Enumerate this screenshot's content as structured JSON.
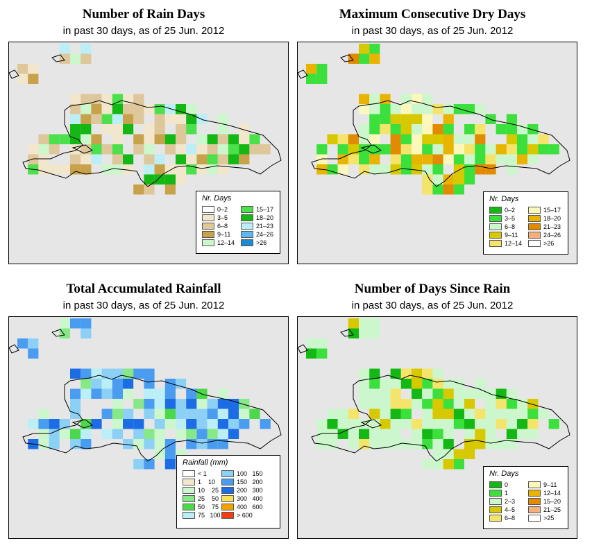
{
  "panels": [
    {
      "id": "rain-days",
      "title": "Number of Rain Days",
      "subtitle": "in past 30 days, as of  25 Jun. 2012",
      "legend": {
        "title": "Nr. Days",
        "columns": [
          [
            {
              "label": "0–2",
              "color": "#ffffff"
            },
            {
              "label": "3–5",
              "color": "#f2e6cd"
            },
            {
              "label": "6–8",
              "color": "#dec79b"
            },
            {
              "label": "9–11",
              "color": "#c8a24a"
            },
            {
              "label": "12–14",
              "color": "#ccf7cc"
            }
          ],
          [
            {
              "label": "15–17",
              "color": "#4ce04c"
            },
            {
              "label": "18–20",
              "color": "#14b814"
            },
            {
              "label": "21–23",
              "color": "#bceef8"
            },
            {
              "label": "24–26",
              "color": "#5cb8f2"
            },
            {
              "label": ">26",
              "color": "#1e8ad0"
            }
          ]
        ]
      }
    },
    {
      "id": "dry-days",
      "title": "Maximum Consecutive Dry Days",
      "subtitle": "in past 30 days, as of  25 Jun. 2012",
      "legend": {
        "title": "Nr. Days",
        "columns": [
          [
            {
              "label": "0–2",
              "color": "#14b814"
            },
            {
              "label": "3–5",
              "color": "#3ce03c"
            },
            {
              "label": "6–8",
              "color": "#ccf7cc"
            },
            {
              "label": "9–11",
              "color": "#d8c800"
            },
            {
              "label": "12–14",
              "color": "#f4e46a"
            }
          ],
          [
            {
              "label": "15–17",
              "color": "#fcf8bc"
            },
            {
              "label": "18–20",
              "color": "#e8b400"
            },
            {
              "label": "21–23",
              "color": "#e28a00"
            },
            {
              "label": "24–26",
              "color": "#f4b07c"
            },
            {
              "label": ">26",
              "color": "#ffffff"
            }
          ]
        ]
      }
    },
    {
      "id": "rainfall",
      "title": "Total Accumulated Rainfall",
      "subtitle": "in past 30 days, as of  25 Jun. 2012",
      "legend": {
        "title": "Rainfall (mm)",
        "columns": [
          [
            {
              "label": "< 1",
              "color": "#ffffff"
            },
            {
              "label": "1    10",
              "color": "#f2e6cd"
            },
            {
              "label": "10    25",
              "color": "#ccf7cc"
            },
            {
              "label": "25    50",
              "color": "#86e886"
            },
            {
              "label": "50    75",
              "color": "#4cd84c"
            },
            {
              "label": "75   100",
              "color": "#bceef8"
            }
          ],
          [
            {
              "label": "100   150",
              "color": "#8cd0f6"
            },
            {
              "label": "150   200",
              "color": "#4a9cf0"
            },
            {
              "label": "200   300",
              "color": "#1c6ce6"
            },
            {
              "label": "300   400",
              "color": "#f6e060"
            },
            {
              "label": "400   600",
              "color": "#f4a000"
            },
            {
              "label": "> 600",
              "color": "#f43c0c"
            }
          ]
        ]
      }
    },
    {
      "id": "days-since-rain",
      "title": "Number of Days Since Rain",
      "subtitle": "in past 30 days, as of  25 Jun. 2012",
      "legend": {
        "title": "Nr. Days",
        "columns": [
          [
            {
              "label": "0",
              "color": "#14b814"
            },
            {
              "label": "1",
              "color": "#3ce03c"
            },
            {
              "label": "2–3",
              "color": "#ccf7cc"
            },
            {
              "label": "4–5",
              "color": "#d8c800"
            },
            {
              "label": "6–8",
              "color": "#f4e46a"
            }
          ],
          [
            {
              "label": "9–11",
              "color": "#fcf8bc"
            },
            {
              "label": "12–14",
              "color": "#e8b400"
            },
            {
              "label": "15–20",
              "color": "#e28a00"
            },
            {
              "label": "21–25",
              "color": "#f4b07c"
            },
            {
              "label": ">25",
              "color": "#ffffff"
            }
          ]
        ]
      }
    }
  ]
}
